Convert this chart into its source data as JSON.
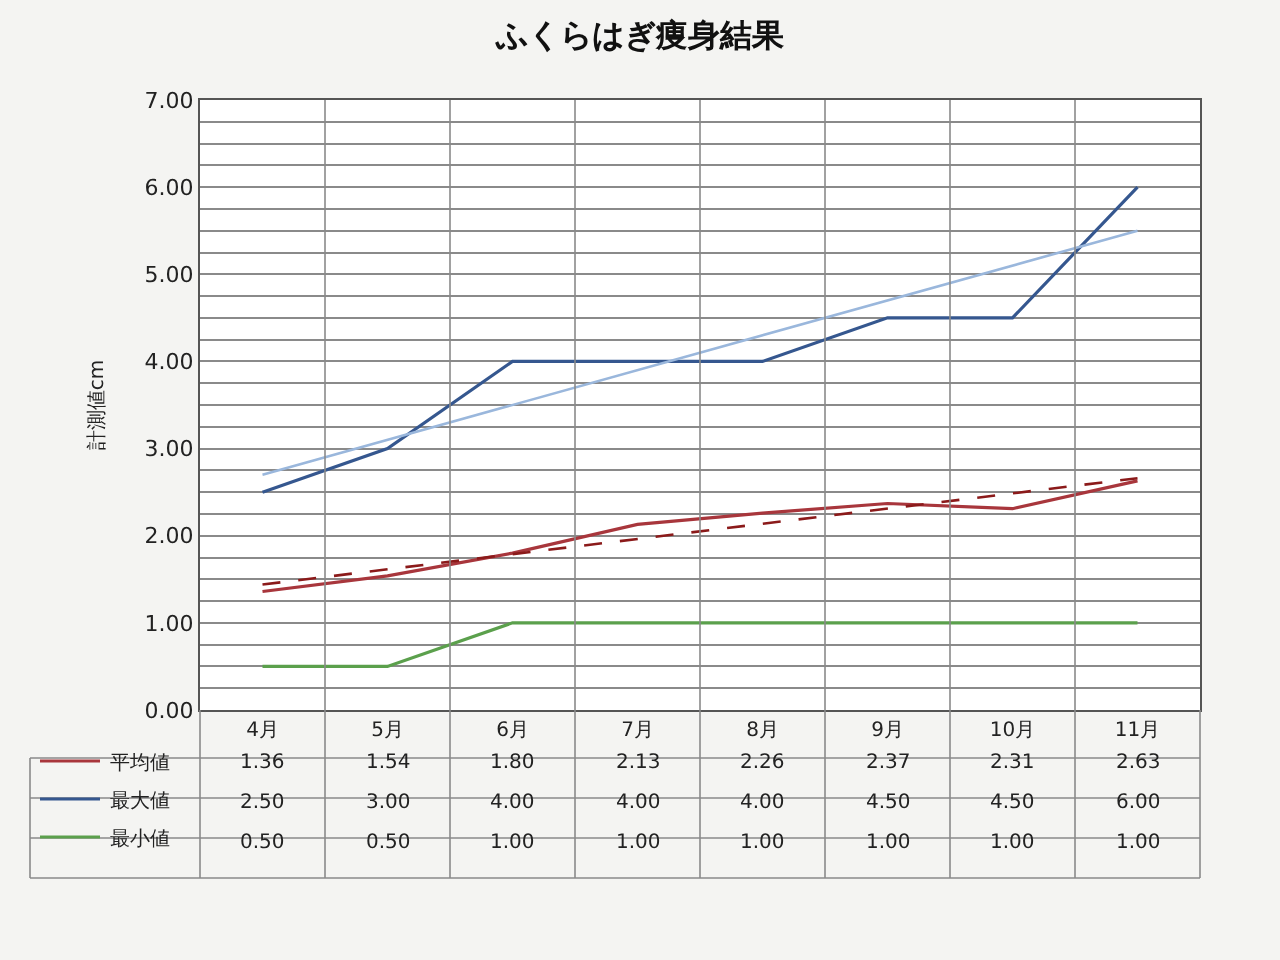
{
  "chart_data": {
    "type": "line",
    "title": "ふくらはぎ痩身結果",
    "ylabel": "計測値cm",
    "categories": [
      "4月",
      "5月",
      "6月",
      "7月",
      "8月",
      "9月",
      "10月",
      "11月"
    ],
    "series": [
      {
        "name": "平均値",
        "color": "#a8363c",
        "values": [
          1.36,
          1.54,
          1.8,
          2.13,
          2.26,
          2.37,
          2.31,
          2.63
        ],
        "value_labels": [
          "1.36",
          "1.54",
          "1.80",
          "2.13",
          "2.26",
          "2.37",
          "2.31",
          "2.63"
        ]
      },
      {
        "name": "最大値",
        "color": "#35578f",
        "values": [
          2.5,
          3.0,
          4.0,
          4.0,
          4.0,
          4.5,
          4.5,
          6.0
        ],
        "value_labels": [
          "2.50",
          "3.00",
          "4.00",
          "4.00",
          "4.00",
          "4.50",
          "4.50",
          "6.00"
        ]
      },
      {
        "name": "最小値",
        "color": "#5ba04c",
        "values": [
          0.5,
          0.5,
          1.0,
          1.0,
          1.0,
          1.0,
          1.0,
          1.0
        ],
        "value_labels": [
          "0.50",
          "0.50",
          "1.00",
          "1.00",
          "1.00",
          "1.00",
          "1.00",
          "1.00"
        ]
      },
      {
        "type": "line",
        "color": "#8b1a1a",
        "line_style": "dashed",
        "x": [
          "4月",
          "11月"
        ],
        "values": [
          1.44,
          2.66
        ]
      },
      {
        "type": "line",
        "color": "#9ab7dc",
        "line_style": "solid",
        "x": [
          "4月",
          "11月"
        ],
        "values": [
          2.7,
          5.5
        ]
      }
    ],
    "ylim": [
      0,
      7
    ],
    "yticks": [
      {
        "value": 0,
        "label": "0.00"
      },
      {
        "value": 0.25,
        "label": null
      },
      {
        "value": 0.5,
        "label": null
      },
      {
        "value": 0.75,
        "label": null
      },
      {
        "value": 1,
        "label": "1.00"
      },
      {
        "value": 1.25,
        "label": null
      },
      {
        "value": 1.5,
        "label": null
      },
      {
        "value": 1.75,
        "label": null
      },
      {
        "value": 2,
        "label": "2.00"
      },
      {
        "value": 2.25,
        "label": null
      },
      {
        "value": 2.5,
        "label": null
      },
      {
        "value": 2.75,
        "label": null
      },
      {
        "value": 3,
        "label": "3.00"
      },
      {
        "value": 3.25,
        "label": null
      },
      {
        "value": 3.5,
        "label": null
      },
      {
        "value": 3.75,
        "label": null
      },
      {
        "value": 4,
        "label": "4.00"
      },
      {
        "value": 4.25,
        "label": null
      },
      {
        "value": 4.5,
        "label": null
      },
      {
        "value": 4.75,
        "label": null
      },
      {
        "value": 5,
        "label": "5.00"
      },
      {
        "value": 5.25,
        "label": null
      },
      {
        "value": 5.5,
        "label": null
      },
      {
        "value": 5.75,
        "label": null
      },
      {
        "value": 6,
        "label": "6.00"
      },
      {
        "value": 6.25,
        "label": null
      },
      {
        "value": 6.5,
        "label": null
      },
      {
        "value": 6.75,
        "label": null
      },
      {
        "value": 7,
        "label": "7.00"
      }
    ],
    "grid": true,
    "legend": "bottom",
    "marker": "none",
    "line_style": "solid"
  }
}
